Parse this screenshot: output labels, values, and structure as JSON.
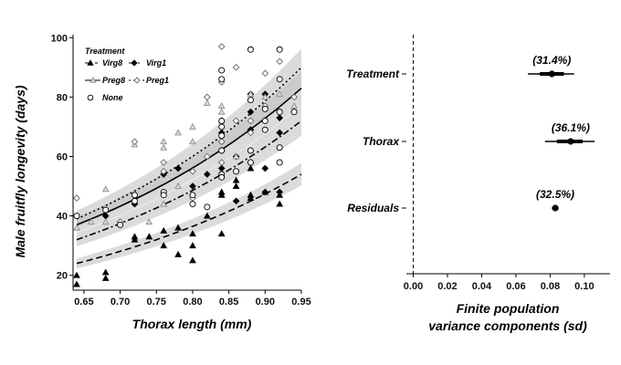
{
  "chart_data": [
    {
      "type": "scatter",
      "xlabel": "Thorax length (mm)",
      "ylabel": "Male fruitfly longevity (days)",
      "xlim": [
        0.635,
        0.95
      ],
      "ylim": [
        15,
        101
      ],
      "xticks": [
        0.65,
        0.7,
        0.75,
        0.8,
        0.85,
        0.9,
        0.95
      ],
      "xtick_labels": [
        "0.65",
        "0.70",
        "0.75",
        "0.80",
        "0.85",
        "0.90",
        "0.95"
      ],
      "yticks": [
        20,
        40,
        60,
        80,
        100
      ],
      "ytick_labels": [
        "20",
        "40",
        "60",
        "80",
        "100"
      ],
      "legend": {
        "title": "Treatment",
        "placement": "top-left",
        "entries": [
          {
            "key": "virg8",
            "label": "Virg8"
          },
          {
            "key": "virg1",
            "label": "Virg1"
          },
          {
            "key": "preg8",
            "label": "Preg8"
          },
          {
            "key": "preg1",
            "label": "Preg1"
          },
          {
            "key": "none",
            "label": "None"
          }
        ]
      },
      "series": [
        {
          "name": "Virg8",
          "key": "virg8",
          "marker": "filled-triangle",
          "color": "#000000",
          "line": "dashed",
          "curve": [
            [
              0.64,
              24
            ],
            [
              0.95,
              54
            ]
          ],
          "points": [
            [
              0.64,
              20
            ],
            [
              0.64,
              17
            ],
            [
              0.68,
              21
            ],
            [
              0.68,
              19
            ],
            [
              0.72,
              32
            ],
            [
              0.72,
              33
            ],
            [
              0.74,
              33
            ],
            [
              0.76,
              30
            ],
            [
              0.76,
              35
            ],
            [
              0.78,
              36
            ],
            [
              0.78,
              27
            ],
            [
              0.8,
              34
            ],
            [
              0.8,
              30
            ],
            [
              0.8,
              25
            ],
            [
              0.82,
              40
            ],
            [
              0.84,
              34
            ],
            [
              0.84,
              47
            ],
            [
              0.86,
              50
            ],
            [
              0.86,
              52
            ],
            [
              0.88,
              47
            ],
            [
              0.88,
              46
            ],
            [
              0.88,
              56
            ],
            [
              0.9,
              48
            ],
            [
              0.92,
              44
            ],
            [
              0.92,
              47
            ],
            [
              0.84,
              48
            ]
          ]
        },
        {
          "name": "Virg1",
          "key": "virg1",
          "marker": "filled-diamond",
          "color": "#000000",
          "line": "dash-dot",
          "curve": [
            [
              0.64,
              32
            ],
            [
              0.95,
              72
            ]
          ],
          "points": [
            [
              0.68,
              40
            ],
            [
              0.72,
              44
            ],
            [
              0.76,
              54
            ],
            [
              0.78,
              56
            ],
            [
              0.8,
              50
            ],
            [
              0.82,
              54
            ],
            [
              0.84,
              56
            ],
            [
              0.84,
              62
            ],
            [
              0.84,
              65
            ],
            [
              0.84,
              68
            ],
            [
              0.86,
              60
            ],
            [
              0.88,
              69
            ],
            [
              0.88,
              81
            ],
            [
              0.88,
              75
            ],
            [
              0.88,
              58
            ],
            [
              0.9,
              56
            ],
            [
              0.9,
              81
            ],
            [
              0.9,
              48
            ],
            [
              0.92,
              68
            ],
            [
              0.92,
              73
            ],
            [
              0.92,
              48
            ],
            [
              0.86,
              45
            ]
          ]
        },
        {
          "name": "Preg8",
          "key": "preg8",
          "marker": "grey-triangle",
          "color": "#9a9a9a",
          "line": "solid",
          "curve": [
            [
              0.64,
              37
            ],
            [
              0.95,
              83
            ]
          ],
          "points": [
            [
              0.64,
              36
            ],
            [
              0.66,
              38
            ],
            [
              0.68,
              38
            ],
            [
              0.68,
              49
            ],
            [
              0.72,
              64
            ],
            [
              0.74,
              38
            ],
            [
              0.76,
              65
            ],
            [
              0.76,
              63
            ],
            [
              0.76,
              44
            ],
            [
              0.78,
              68
            ],
            [
              0.78,
              50
            ],
            [
              0.8,
              70
            ],
            [
              0.8,
              65
            ],
            [
              0.82,
              78
            ],
            [
              0.84,
              75
            ],
            [
              0.84,
              77
            ],
            [
              0.84,
              72
            ],
            [
              0.86,
              60
            ],
            [
              0.88,
              81
            ],
            [
              0.9,
              80
            ],
            [
              0.92,
              81
            ],
            [
              0.94,
              77
            ]
          ]
        },
        {
          "name": "Preg1",
          "key": "preg1",
          "marker": "open-diamond",
          "color": "#666666",
          "line": "dotted",
          "curve": [
            [
              0.64,
              39
            ],
            [
              0.95,
              90
            ]
          ],
          "points": [
            [
              0.64,
              46
            ],
            [
              0.7,
              38
            ],
            [
              0.72,
              65
            ],
            [
              0.76,
              58
            ],
            [
              0.76,
              55
            ],
            [
              0.8,
              55
            ],
            [
              0.8,
              46
            ],
            [
              0.82,
              80
            ],
            [
              0.84,
              97
            ],
            [
              0.84,
              85
            ],
            [
              0.84,
              70
            ],
            [
              0.84,
              65
            ],
            [
              0.84,
              58
            ],
            [
              0.86,
              90
            ],
            [
              0.86,
              72
            ],
            [
              0.88,
              68
            ],
            [
              0.88,
              72
            ],
            [
              0.9,
              88
            ],
            [
              0.9,
              77
            ],
            [
              0.92,
              92
            ],
            [
              0.94,
              80
            ],
            [
              0.82,
              60
            ]
          ]
        },
        {
          "name": "None",
          "key": "none",
          "marker": "open-circle",
          "color": "#000000",
          "line": "none",
          "points": [
            [
              0.64,
              40
            ],
            [
              0.68,
              42
            ],
            [
              0.7,
              37
            ],
            [
              0.72,
              47
            ],
            [
              0.72,
              45
            ],
            [
              0.76,
              48
            ],
            [
              0.76,
              47
            ],
            [
              0.8,
              47
            ],
            [
              0.8,
              44
            ],
            [
              0.82,
              43
            ],
            [
              0.84,
              89
            ],
            [
              0.84,
              86
            ],
            [
              0.84,
              72
            ],
            [
              0.84,
              70
            ],
            [
              0.84,
              67
            ],
            [
              0.84,
              62
            ],
            [
              0.84,
              54
            ],
            [
              0.84,
              53
            ],
            [
              0.86,
              55
            ],
            [
              0.88,
              96
            ],
            [
              0.88,
              79
            ],
            [
              0.88,
              62
            ],
            [
              0.88,
              58
            ],
            [
              0.9,
              76
            ],
            [
              0.9,
              72
            ],
            [
              0.9,
              69
            ],
            [
              0.92,
              96
            ],
            [
              0.92,
              86
            ],
            [
              0.92,
              75
            ],
            [
              0.92,
              63
            ],
            [
              0.92,
              58
            ],
            [
              0.94,
              75
            ]
          ]
        }
      ]
    },
    {
      "type": "dot-interval",
      "xlabel": "Finite population\nvariance components (sd)",
      "xlabel_lines": [
        "Finite population",
        "variance components (sd)"
      ],
      "xlim": [
        -0.004,
        0.115
      ],
      "xticks": [
        0.0,
        0.02,
        0.04,
        0.06,
        0.08,
        0.1
      ],
      "xtick_labels": [
        "0.00",
        "0.02",
        "0.04",
        "0.06",
        "0.08",
        "0.10"
      ],
      "reference_line": 0.0,
      "components": [
        {
          "name": "Treatment",
          "value": 0.081,
          "ci50": [
            0.074,
            0.088
          ],
          "ci95": [
            0.067,
            0.094
          ],
          "label": "(31.4%)"
        },
        {
          "name": "Thorax",
          "value": 0.092,
          "ci50": [
            0.084,
            0.099
          ],
          "ci95": [
            0.077,
            0.106
          ],
          "label": "(36.1%)"
        },
        {
          "name": "Residuals",
          "value": 0.083,
          "ci50": [
            0.082,
            0.084
          ],
          "ci95": [
            0.081,
            0.085
          ],
          "label": "(32.5%)"
        }
      ]
    }
  ]
}
